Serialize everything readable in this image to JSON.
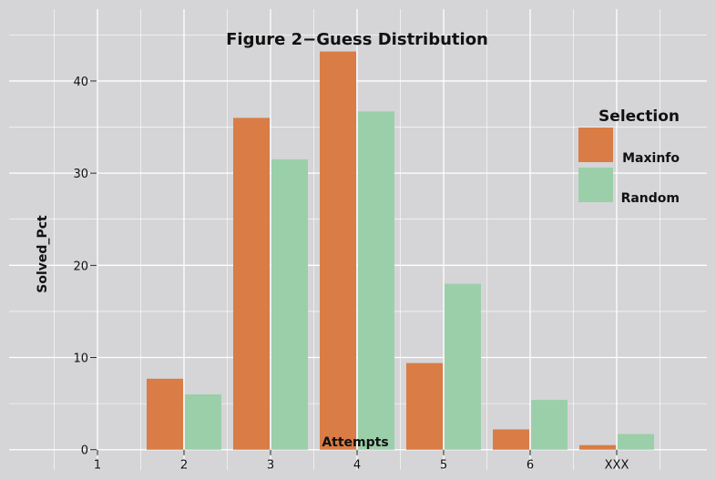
{
  "chart_data": {
    "type": "bar",
    "title": "Figure 2−Guess Distribution",
    "xlabel": "Attempts",
    "ylabel": "Solved_Pct",
    "x_ticks": [
      "1",
      "2",
      "3",
      "4",
      "5",
      "6",
      "XXX"
    ],
    "categories": [
      "2",
      "3",
      "4",
      "5",
      "6",
      "XXX"
    ],
    "y_ticks": [
      0,
      10,
      20,
      30,
      40
    ],
    "ylim": [
      -2.2,
      47.8
    ],
    "grid": true,
    "legend": {
      "title": "Selection",
      "placement": "right"
    },
    "series": [
      {
        "name": "Maxinfo",
        "color": "#d97c45",
        "values": [
          7.7,
          36.0,
          43.2,
          9.4,
          2.2,
          0.5
        ]
      },
      {
        "name": "Random",
        "color": "#9bcfa9",
        "values": [
          6.0,
          31.5,
          36.7,
          18.0,
          5.4,
          1.7
        ]
      }
    ],
    "colors": {
      "background": "#d5d5d7",
      "grid": "#ffffff",
      "text": "#111111"
    }
  }
}
